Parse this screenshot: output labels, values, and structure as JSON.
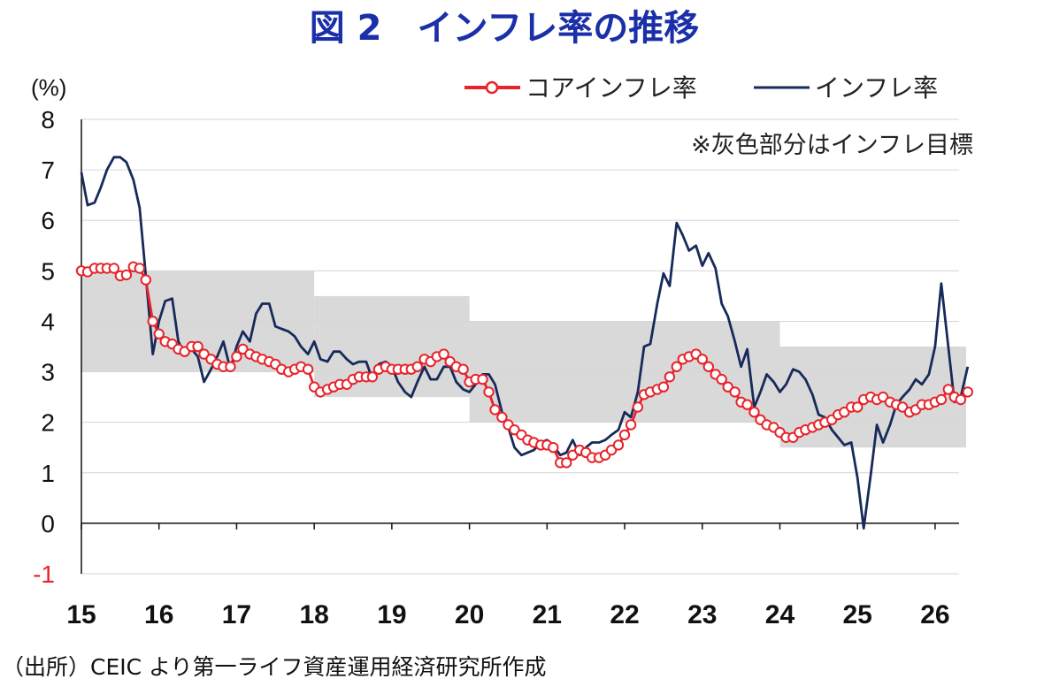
{
  "title": "図 2　インフレ率の推移",
  "note": "※灰色部分はインフレ目標",
  "source": "（出所）CEIC より第一ライフ資産運用経済研究所作成",
  "colors": {
    "core": "#e8232a",
    "headline": "#172a5a",
    "band": "#d9d9d9",
    "grid": "#d6d6d6",
    "title": "#1a2fa8",
    "negative_tick": "#e8232a"
  },
  "chart_data": {
    "type": "line",
    "ylabel": "(%)",
    "ylim": [
      -1,
      8
    ],
    "yticks": [
      "8",
      "7",
      "6",
      "5",
      "4",
      "3",
      "2",
      "1",
      "0",
      "-1"
    ],
    "xlim": [
      2015,
      2026.4
    ],
    "xticks": [
      "15",
      "16",
      "17",
      "18",
      "19",
      "20",
      "21",
      "22",
      "23",
      "24",
      "25",
      "26"
    ],
    "grid": true,
    "legend": {
      "placement": "top-right",
      "entries": [
        "コアインフレ率",
        "インフレ率"
      ]
    },
    "target_band": [
      {
        "x0": 2015.0,
        "x1": 2018.0,
        "low": 3.0,
        "high": 5.0
      },
      {
        "x0": 2018.0,
        "x1": 2020.0,
        "low": 2.5,
        "high": 4.5
      },
      {
        "x0": 2020.0,
        "x1": 2024.0,
        "low": 2.0,
        "high": 4.0
      },
      {
        "x0": 2024.0,
        "x1": 2026.4,
        "low": 1.5,
        "high": 3.5
      }
    ],
    "series": [
      {
        "name": "コアインフレ率",
        "points": [
          [
            2015.0,
            5.0
          ],
          [
            2015.08,
            4.98
          ],
          [
            2015.17,
            5.05
          ],
          [
            2015.25,
            5.05
          ],
          [
            2015.33,
            5.05
          ],
          [
            2015.42,
            5.05
          ],
          [
            2015.5,
            4.9
          ],
          [
            2015.58,
            4.92
          ],
          [
            2015.67,
            5.08
          ],
          [
            2015.75,
            5.05
          ],
          [
            2015.83,
            4.82
          ],
          [
            2015.92,
            4.0
          ],
          [
            2016.0,
            3.75
          ],
          [
            2016.08,
            3.6
          ],
          [
            2016.17,
            3.55
          ],
          [
            2016.25,
            3.45
          ],
          [
            2016.33,
            3.4
          ],
          [
            2016.42,
            3.5
          ],
          [
            2016.5,
            3.5
          ],
          [
            2016.58,
            3.35
          ],
          [
            2016.67,
            3.25
          ],
          [
            2016.75,
            3.15
          ],
          [
            2016.83,
            3.1
          ],
          [
            2016.92,
            3.1
          ],
          [
            2017.0,
            3.3
          ],
          [
            2017.08,
            3.45
          ],
          [
            2017.17,
            3.35
          ],
          [
            2017.25,
            3.3
          ],
          [
            2017.33,
            3.25
          ],
          [
            2017.42,
            3.2
          ],
          [
            2017.5,
            3.15
          ],
          [
            2017.58,
            3.05
          ],
          [
            2017.67,
            3.0
          ],
          [
            2017.75,
            3.05
          ],
          [
            2017.83,
            3.1
          ],
          [
            2017.92,
            3.05
          ],
          [
            2018.0,
            2.7
          ],
          [
            2018.08,
            2.6
          ],
          [
            2018.17,
            2.65
          ],
          [
            2018.25,
            2.7
          ],
          [
            2018.33,
            2.75
          ],
          [
            2018.42,
            2.75
          ],
          [
            2018.5,
            2.85
          ],
          [
            2018.58,
            2.9
          ],
          [
            2018.67,
            2.9
          ],
          [
            2018.75,
            2.9
          ],
          [
            2018.83,
            3.05
          ],
          [
            2018.92,
            3.1
          ],
          [
            2019.0,
            3.05
          ],
          [
            2019.08,
            3.05
          ],
          [
            2019.17,
            3.05
          ],
          [
            2019.25,
            3.05
          ],
          [
            2019.33,
            3.1
          ],
          [
            2019.42,
            3.25
          ],
          [
            2019.5,
            3.2
          ],
          [
            2019.58,
            3.3
          ],
          [
            2019.67,
            3.35
          ],
          [
            2019.75,
            3.2
          ],
          [
            2019.83,
            3.1
          ],
          [
            2019.92,
            3.05
          ],
          [
            2020.0,
            2.8
          ],
          [
            2020.08,
            2.85
          ],
          [
            2020.17,
            2.85
          ],
          [
            2020.25,
            2.6
          ],
          [
            2020.33,
            2.25
          ],
          [
            2020.42,
            2.1
          ],
          [
            2020.5,
            1.95
          ],
          [
            2020.58,
            1.85
          ],
          [
            2020.67,
            1.75
          ],
          [
            2020.75,
            1.65
          ],
          [
            2020.83,
            1.6
          ],
          [
            2020.92,
            1.55
          ],
          [
            2021.0,
            1.55
          ],
          [
            2021.08,
            1.5
          ],
          [
            2021.17,
            1.2
          ],
          [
            2021.25,
            1.2
          ],
          [
            2021.33,
            1.35
          ],
          [
            2021.42,
            1.45
          ],
          [
            2021.5,
            1.4
          ],
          [
            2021.58,
            1.3
          ],
          [
            2021.67,
            1.3
          ],
          [
            2021.75,
            1.35
          ],
          [
            2021.83,
            1.45
          ],
          [
            2021.92,
            1.55
          ],
          [
            2022.0,
            1.75
          ],
          [
            2022.08,
            1.95
          ],
          [
            2022.17,
            2.3
          ],
          [
            2022.25,
            2.55
          ],
          [
            2022.33,
            2.6
          ],
          [
            2022.42,
            2.65
          ],
          [
            2022.5,
            2.7
          ],
          [
            2022.58,
            2.9
          ],
          [
            2022.67,
            3.1
          ],
          [
            2022.75,
            3.25
          ],
          [
            2022.83,
            3.3
          ],
          [
            2022.92,
            3.35
          ],
          [
            2023.0,
            3.25
          ],
          [
            2023.08,
            3.1
          ],
          [
            2023.17,
            2.95
          ],
          [
            2023.25,
            2.85
          ],
          [
            2023.33,
            2.7
          ],
          [
            2023.42,
            2.6
          ],
          [
            2023.5,
            2.4
          ],
          [
            2023.58,
            2.35
          ],
          [
            2023.67,
            2.2
          ],
          [
            2023.75,
            2.05
          ],
          [
            2023.83,
            1.95
          ],
          [
            2023.92,
            1.9
          ],
          [
            2024.0,
            1.8
          ],
          [
            2024.08,
            1.7
          ],
          [
            2024.17,
            1.7
          ],
          [
            2024.25,
            1.8
          ],
          [
            2024.33,
            1.85
          ],
          [
            2024.42,
            1.9
          ],
          [
            2024.5,
            1.95
          ],
          [
            2024.58,
            2.0
          ],
          [
            2024.67,
            2.05
          ],
          [
            2024.75,
            2.15
          ],
          [
            2024.83,
            2.2
          ],
          [
            2024.92,
            2.3
          ],
          [
            2025.0,
            2.3
          ],
          [
            2025.08,
            2.45
          ],
          [
            2025.17,
            2.5
          ],
          [
            2025.25,
            2.45
          ],
          [
            2025.33,
            2.5
          ],
          [
            2025.42,
            2.4
          ],
          [
            2025.5,
            2.35
          ],
          [
            2025.58,
            2.3
          ],
          [
            2025.67,
            2.2
          ],
          [
            2025.75,
            2.25
          ],
          [
            2025.83,
            2.35
          ],
          [
            2025.92,
            2.35
          ],
          [
            2026.0,
            2.4
          ],
          [
            2026.08,
            2.45
          ],
          [
            2026.17,
            2.65
          ],
          [
            2026.25,
            2.5
          ],
          [
            2026.33,
            2.45
          ],
          [
            2026.42,
            2.6
          ]
        ]
      },
      {
        "name": "インフレ率",
        "points": [
          [
            2015.0,
            6.95
          ],
          [
            2015.08,
            6.3
          ],
          [
            2015.17,
            6.35
          ],
          [
            2015.25,
            6.65
          ],
          [
            2015.33,
            7.0
          ],
          [
            2015.42,
            7.25
          ],
          [
            2015.5,
            7.25
          ],
          [
            2015.58,
            7.15
          ],
          [
            2015.67,
            6.8
          ],
          [
            2015.75,
            6.25
          ],
          [
            2015.83,
            4.9
          ],
          [
            2015.92,
            3.35
          ],
          [
            2016.0,
            4.0
          ],
          [
            2016.08,
            4.4
          ],
          [
            2016.17,
            4.45
          ],
          [
            2016.25,
            3.6
          ],
          [
            2016.33,
            3.35
          ],
          [
            2016.42,
            3.45
          ],
          [
            2016.5,
            3.3
          ],
          [
            2016.58,
            2.8
          ],
          [
            2016.67,
            3.05
          ],
          [
            2016.75,
            3.3
          ],
          [
            2016.83,
            3.6
          ],
          [
            2016.92,
            3.05
          ],
          [
            2017.0,
            3.5
          ],
          [
            2017.08,
            3.8
          ],
          [
            2017.17,
            3.6
          ],
          [
            2017.25,
            4.15
          ],
          [
            2017.33,
            4.35
          ],
          [
            2017.42,
            4.35
          ],
          [
            2017.5,
            3.9
          ],
          [
            2017.58,
            3.85
          ],
          [
            2017.67,
            3.8
          ],
          [
            2017.75,
            3.7
          ],
          [
            2017.83,
            3.5
          ],
          [
            2017.92,
            3.35
          ],
          [
            2018.0,
            3.6
          ],
          [
            2018.08,
            3.25
          ],
          [
            2018.17,
            3.2
          ],
          [
            2018.25,
            3.4
          ],
          [
            2018.33,
            3.4
          ],
          [
            2018.42,
            3.25
          ],
          [
            2018.5,
            3.15
          ],
          [
            2018.58,
            3.2
          ],
          [
            2018.67,
            3.2
          ],
          [
            2018.75,
            2.85
          ],
          [
            2018.83,
            3.15
          ],
          [
            2018.92,
            3.2
          ],
          [
            2019.0,
            3.1
          ],
          [
            2019.08,
            2.8
          ],
          [
            2019.17,
            2.6
          ],
          [
            2019.25,
            2.5
          ],
          [
            2019.33,
            2.8
          ],
          [
            2019.42,
            3.1
          ],
          [
            2019.5,
            2.85
          ],
          [
            2019.58,
            2.85
          ],
          [
            2019.67,
            3.1
          ],
          [
            2019.75,
            3.1
          ],
          [
            2019.83,
            2.8
          ],
          [
            2019.92,
            2.65
          ],
          [
            2020.0,
            2.6
          ],
          [
            2020.08,
            2.75
          ],
          [
            2020.17,
            2.95
          ],
          [
            2020.25,
            2.95
          ],
          [
            2020.33,
            2.75
          ],
          [
            2020.42,
            2.2
          ],
          [
            2020.5,
            1.9
          ],
          [
            2020.58,
            1.5
          ],
          [
            2020.67,
            1.35
          ],
          [
            2020.75,
            1.4
          ],
          [
            2020.83,
            1.45
          ],
          [
            2020.92,
            1.6
          ],
          [
            2021.0,
            1.65
          ],
          [
            2021.08,
            1.55
          ],
          [
            2021.17,
            1.35
          ],
          [
            2021.25,
            1.4
          ],
          [
            2021.33,
            1.65
          ],
          [
            2021.42,
            1.35
          ],
          [
            2021.5,
            1.5
          ],
          [
            2021.58,
            1.6
          ],
          [
            2021.67,
            1.6
          ],
          [
            2021.75,
            1.65
          ],
          [
            2021.83,
            1.75
          ],
          [
            2021.92,
            1.85
          ],
          [
            2022.0,
            2.2
          ],
          [
            2022.08,
            2.1
          ],
          [
            2022.17,
            2.6
          ],
          [
            2022.25,
            3.5
          ],
          [
            2022.33,
            3.55
          ],
          [
            2022.42,
            4.35
          ],
          [
            2022.5,
            4.95
          ],
          [
            2022.58,
            4.7
          ],
          [
            2022.67,
            5.95
          ],
          [
            2022.75,
            5.7
          ],
          [
            2022.83,
            5.4
          ],
          [
            2022.92,
            5.5
          ],
          [
            2023.0,
            5.1
          ],
          [
            2023.08,
            5.35
          ],
          [
            2023.17,
            5.05
          ],
          [
            2023.25,
            4.35
          ],
          [
            2023.33,
            4.1
          ],
          [
            2023.42,
            3.6
          ],
          [
            2023.5,
            3.1
          ],
          [
            2023.58,
            3.45
          ],
          [
            2023.67,
            2.3
          ],
          [
            2023.75,
            2.6
          ],
          [
            2023.83,
            2.95
          ],
          [
            2023.92,
            2.8
          ],
          [
            2024.0,
            2.6
          ],
          [
            2024.08,
            2.75
          ],
          [
            2024.17,
            3.05
          ],
          [
            2024.25,
            3.0
          ],
          [
            2024.33,
            2.85
          ],
          [
            2024.42,
            2.55
          ],
          [
            2024.5,
            2.15
          ],
          [
            2024.58,
            2.1
          ],
          [
            2024.67,
            1.85
          ],
          [
            2024.75,
            1.7
          ],
          [
            2024.83,
            1.55
          ],
          [
            2024.92,
            1.6
          ],
          [
            2025.0,
            0.9
          ],
          [
            2025.08,
            -0.1
          ],
          [
            2025.17,
            0.95
          ],
          [
            2025.25,
            1.95
          ],
          [
            2025.33,
            1.6
          ],
          [
            2025.42,
            1.95
          ],
          [
            2025.5,
            2.35
          ],
          [
            2025.58,
            2.5
          ],
          [
            2025.67,
            2.65
          ],
          [
            2025.75,
            2.85
          ],
          [
            2025.83,
            2.75
          ],
          [
            2025.92,
            2.95
          ],
          [
            2026.0,
            3.5
          ],
          [
            2026.08,
            4.75
          ],
          [
            2026.17,
            3.5
          ],
          [
            2026.25,
            2.4
          ],
          [
            2026.33,
            2.5
          ],
          [
            2026.42,
            3.1
          ]
        ]
      }
    ]
  }
}
